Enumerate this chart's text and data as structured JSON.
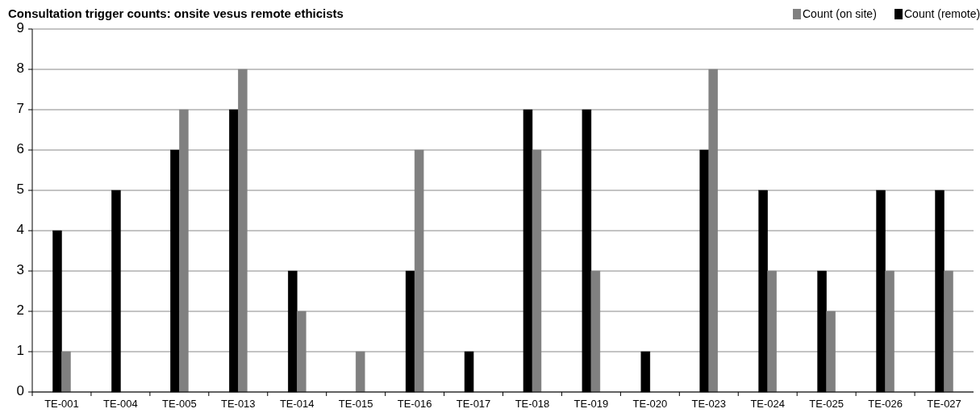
{
  "chart_data": {
    "type": "bar",
    "title": "Consultation trigger counts: onsite vesus remote ethicists",
    "categories": [
      "TE-001",
      "TE-004",
      "TE-005",
      "TE-013",
      "TE-014",
      "TE-015",
      "TE-016",
      "TE-017",
      "TE-018",
      "TE-019",
      "TE-020",
      "TE-023",
      "TE-024",
      "TE-025",
      "TE-026",
      "TE-027"
    ],
    "series": [
      {
        "name": "Count (remote)",
        "color": "#000000",
        "values": [
          4,
          5,
          6,
          7,
          3,
          0,
          3,
          1,
          7,
          7,
          1,
          6,
          5,
          3,
          5,
          5
        ]
      },
      {
        "name": "Count (on site)",
        "color": "#808080",
        "values": [
          1,
          0,
          7,
          8,
          2,
          1,
          6,
          0,
          6,
          3,
          0,
          8,
          3,
          2,
          3,
          3
        ]
      }
    ],
    "ylim": [
      0,
      9
    ],
    "yticks": [
      0,
      1,
      2,
      3,
      4,
      5,
      6,
      7,
      8,
      9
    ],
    "grid": "y",
    "legend": "top right"
  }
}
